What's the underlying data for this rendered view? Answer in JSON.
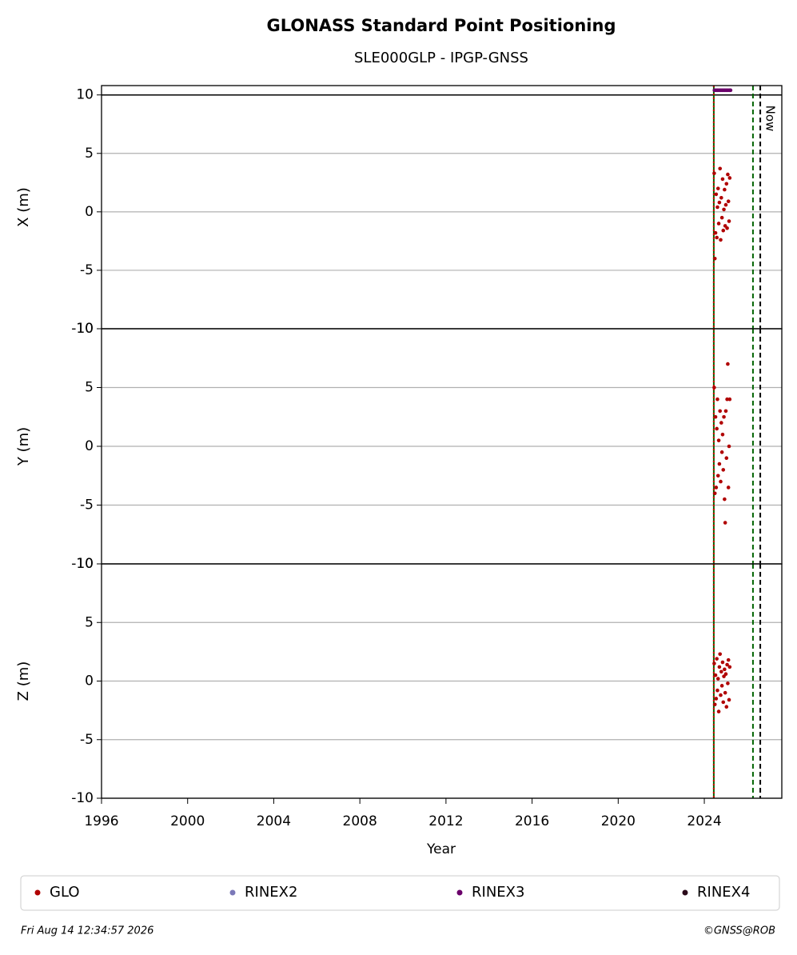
{
  "chart_data": [
    {
      "type": "scatter",
      "title": "GLONASS Standard Point Positioning",
      "subtitle": "SLE000GLP - IPGP-GNSS",
      "ylabel": "X (m)",
      "ylim": [
        -10,
        10.8
      ],
      "yticks": [
        -10,
        -5,
        0,
        5,
        10
      ],
      "grid": true,
      "hlines": [
        10
      ],
      "series": [
        {
          "color": "#b00000",
          "x": [
            2024.46,
            2024.49,
            2024.52,
            2024.55,
            2024.58,
            2024.61,
            2024.64,
            2024.67,
            2024.7,
            2024.73,
            2024.76,
            2024.79,
            2024.82,
            2024.85,
            2024.88,
            2024.91,
            2024.94,
            2024.97,
            2025.0,
            2025.03,
            2025.06,
            2025.09,
            2025.12,
            2025.15,
            2025.18
          ],
          "values": [
            3.3,
            -4.0,
            -1.8,
            1.5,
            -2.2,
            0.4,
            2.0,
            -1.0,
            0.8,
            3.7,
            -2.4,
            1.2,
            -0.5,
            2.8,
            -1.6,
            0.2,
            1.9,
            -1.2,
            0.6,
            2.4,
            -1.4,
            3.2,
            0.9,
            -0.8,
            2.9
          ]
        },
        {
          "color": "#6a006a",
          "x": [
            2024.47,
            2024.54,
            2024.61,
            2024.68,
            2024.75,
            2024.82,
            2024.89,
            2024.96,
            2025.03,
            2025.1,
            2025.17,
            2025.22
          ],
          "values": [
            10.4,
            10.4,
            10.4,
            10.4,
            10.4,
            10.4,
            10.4,
            10.4,
            10.4,
            10.4,
            10.4,
            10.4
          ]
        }
      ]
    },
    {
      "type": "scatter",
      "ylabel": "Y (m)",
      "ylim": [
        -10,
        10
      ],
      "yticks": [
        -10,
        -5,
        0,
        5,
        10
      ],
      "grid": true,
      "series": [
        {
          "color": "#b00000",
          "x": [
            2024.46,
            2024.49,
            2024.52,
            2024.55,
            2024.58,
            2024.61,
            2024.64,
            2024.67,
            2024.7,
            2024.73,
            2024.76,
            2024.79,
            2024.82,
            2024.85,
            2024.88,
            2024.91,
            2024.94,
            2024.97,
            2025.0,
            2025.03,
            2025.06,
            2025.09,
            2025.12,
            2025.15,
            2025.18
          ],
          "values": [
            5.0,
            -4.0,
            2.5,
            -3.5,
            1.5,
            4.0,
            -2.5,
            0.5,
            -1.5,
            3.0,
            -3.0,
            2.0,
            -0.5,
            1.0,
            -2.0,
            2.5,
            -4.5,
            -6.5,
            3.0,
            -1.0,
            4.0,
            7.0,
            -3.5,
            0.0,
            4.0
          ]
        }
      ]
    },
    {
      "type": "scatter",
      "ylabel": "Z (m)",
      "ylim": [
        -10,
        10
      ],
      "yticks": [
        -10,
        -5,
        0,
        5,
        10
      ],
      "grid": true,
      "xlabel": "Year",
      "xlim": [
        1996,
        2027.6
      ],
      "xticks": [
        1996,
        2000,
        2004,
        2008,
        2012,
        2016,
        2020,
        2024
      ],
      "series": [
        {
          "color": "#b00000",
          "x": [
            2024.46,
            2024.49,
            2024.52,
            2024.55,
            2024.58,
            2024.61,
            2024.64,
            2024.67,
            2024.7,
            2024.73,
            2024.76,
            2024.79,
            2024.82,
            2024.85,
            2024.88,
            2024.91,
            2024.94,
            2024.97,
            2025.0,
            2025.03,
            2025.06,
            2025.09,
            2025.12,
            2025.15,
            2025.18
          ],
          "values": [
            1.5,
            -2.0,
            0.5,
            -1.5,
            1.9,
            -0.8,
            0.2,
            -2.6,
            1.2,
            2.3,
            -1.2,
            0.8,
            -0.4,
            1.6,
            -1.8,
            0.4,
            1.0,
            -1.0,
            0.6,
            -2.2,
            1.4,
            -0.2,
            1.8,
            -1.6,
            1.2
          ]
        }
      ]
    }
  ],
  "vlines": [
    {
      "x": 2024.44,
      "color": "#006400",
      "style": "solid"
    },
    {
      "x": 2024.44,
      "color": "#cc0000",
      "style": "dotted"
    },
    {
      "x": 2026.26,
      "color": "#006400",
      "style": "dashed"
    },
    {
      "x": 2026.6,
      "color": "#000000",
      "style": "dashed",
      "label": "Now"
    }
  ],
  "legend": [
    {
      "name": "GLO",
      "color": "#b00000"
    },
    {
      "name": "RINEX2",
      "color": "#7b78b8"
    },
    {
      "name": "RINEX3",
      "color": "#6a006a"
    },
    {
      "name": "RINEX4",
      "color": "#2a0a1a"
    }
  ],
  "footer": {
    "left": "Fri Aug 14 12:34:57 2026",
    "right": "©GNSS@ROB"
  }
}
